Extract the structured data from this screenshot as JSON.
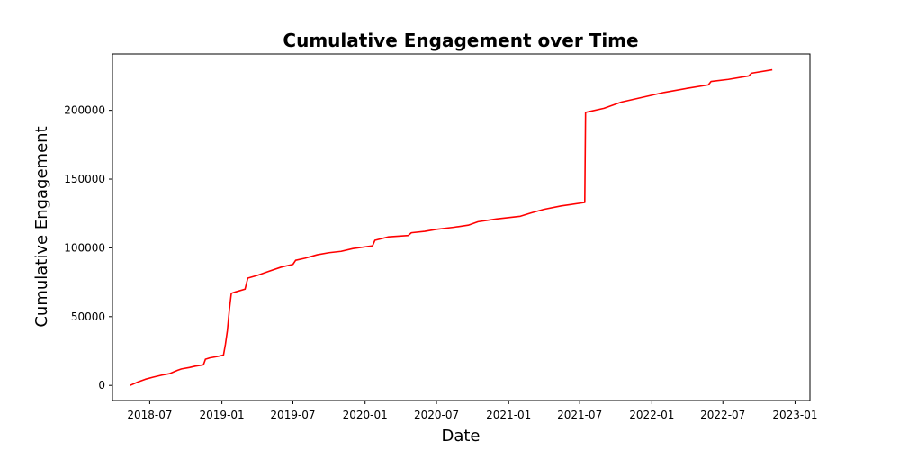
{
  "chart_data": {
    "type": "line",
    "title": "Cumulative Engagement over Time",
    "xlabel": "Date",
    "ylabel": "Cumulative Engagement",
    "x_ticks": [
      "2018-07",
      "2019-01",
      "2019-07",
      "2020-01",
      "2020-07",
      "2021-01",
      "2021-07",
      "2022-01",
      "2022-07",
      "2023-01"
    ],
    "y_ticks": [
      0,
      50000,
      100000,
      150000,
      200000
    ],
    "xlim": [
      "2018-03-28",
      "2023-02-08"
    ],
    "ylim": [
      -11000,
      241000
    ],
    "grid": false,
    "legend": "none",
    "series": [
      {
        "color": "#ff0000",
        "points": [
          [
            "2018-05-12",
            0
          ],
          [
            "2018-06-01",
            2500
          ],
          [
            "2018-06-20",
            4500
          ],
          [
            "2018-07-10",
            6000
          ],
          [
            "2018-08-01",
            7500
          ],
          [
            "2018-08-20",
            8500
          ],
          [
            "2018-09-10",
            11000
          ],
          [
            "2018-09-20",
            12000
          ],
          [
            "2018-10-10",
            13000
          ],
          [
            "2018-10-25",
            14000
          ],
          [
            "2018-11-15",
            15000
          ],
          [
            "2018-11-20",
            19000
          ],
          [
            "2018-12-01",
            20000
          ],
          [
            "2018-12-20",
            21000
          ],
          [
            "2019-01-05",
            22000
          ],
          [
            "2019-01-10",
            30000
          ],
          [
            "2019-01-15",
            40000
          ],
          [
            "2019-01-20",
            55000
          ],
          [
            "2019-01-25",
            67000
          ],
          [
            "2019-02-05",
            68000
          ],
          [
            "2019-03-01",
            70000
          ],
          [
            "2019-03-08",
            78000
          ],
          [
            "2019-04-01",
            80000
          ],
          [
            "2019-05-01",
            83000
          ],
          [
            "2019-06-01",
            86000
          ],
          [
            "2019-07-01",
            88000
          ],
          [
            "2019-07-08",
            91000
          ],
          [
            "2019-08-01",
            92500
          ],
          [
            "2019-09-01",
            95000
          ],
          [
            "2019-10-01",
            96500
          ],
          [
            "2019-11-01",
            97500
          ],
          [
            "2019-12-01",
            99500
          ],
          [
            "2020-01-20",
            101500
          ],
          [
            "2020-01-26",
            105500
          ],
          [
            "2020-03-01",
            108000
          ],
          [
            "2020-04-20",
            109000
          ],
          [
            "2020-04-28",
            111000
          ],
          [
            "2020-06-01",
            112000
          ],
          [
            "2020-07-01",
            113500
          ],
          [
            "2020-08-15",
            115000
          ],
          [
            "2020-09-20",
            116500
          ],
          [
            "2020-10-15",
            119000
          ],
          [
            "2020-12-01",
            121000
          ],
          [
            "2021-01-31",
            123000
          ],
          [
            "2021-02-28",
            125500
          ],
          [
            "2021-04-01",
            128000
          ],
          [
            "2021-05-15",
            130500
          ],
          [
            "2021-07-14",
            133000
          ],
          [
            "2021-07-16",
            198500
          ],
          [
            "2021-09-01",
            201500
          ],
          [
            "2021-10-15",
            206000
          ],
          [
            "2021-12-01",
            209000
          ],
          [
            "2022-02-01",
            213000
          ],
          [
            "2022-04-01",
            216000
          ],
          [
            "2022-05-25",
            218500
          ],
          [
            "2022-06-01",
            221000
          ],
          [
            "2022-07-15",
            222500
          ],
          [
            "2022-09-05",
            225000
          ],
          [
            "2022-09-12",
            227000
          ],
          [
            "2022-11-04",
            229500
          ]
        ]
      }
    ]
  }
}
